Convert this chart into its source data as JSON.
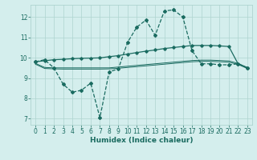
{
  "xlabel": "Humidex (Indice chaleur)",
  "xlim": [
    -0.5,
    23.5
  ],
  "ylim": [
    6.7,
    12.6
  ],
  "yticks": [
    7,
    8,
    9,
    10,
    11,
    12
  ],
  "xticks": [
    0,
    1,
    2,
    3,
    4,
    5,
    6,
    7,
    8,
    9,
    10,
    11,
    12,
    13,
    14,
    15,
    16,
    17,
    18,
    19,
    20,
    21,
    22,
    23
  ],
  "bg_color": "#d4eeed",
  "line_color": "#1a6b60",
  "grid_color": "#aed4d0",
  "line1_x": [
    0,
    1,
    2,
    3,
    4,
    5,
    6,
    7,
    8,
    9,
    10,
    11,
    12,
    13,
    14,
    15,
    16,
    17,
    18,
    19,
    20,
    21,
    22,
    23
  ],
  "line1_y": [
    9.8,
    9.9,
    9.5,
    8.7,
    8.3,
    8.4,
    8.75,
    7.05,
    9.3,
    9.45,
    10.75,
    11.5,
    11.85,
    11.1,
    12.3,
    12.35,
    12.0,
    10.35,
    9.7,
    9.7,
    9.65,
    9.65,
    9.7,
    9.5
  ],
  "line2_x": [
    0,
    1,
    2,
    3,
    4,
    5,
    6,
    7,
    8,
    9,
    10,
    11,
    12,
    13,
    14,
    15,
    16,
    17,
    18,
    19,
    20,
    21,
    22,
    23
  ],
  "line2_y": [
    9.8,
    9.85,
    9.9,
    9.92,
    9.95,
    9.97,
    9.98,
    9.99,
    10.05,
    10.1,
    10.18,
    10.25,
    10.32,
    10.38,
    10.45,
    10.5,
    10.55,
    10.6,
    10.6,
    10.6,
    10.58,
    10.55,
    9.7,
    9.5
  ],
  "line3_x": [
    0,
    1,
    2,
    3,
    4,
    5,
    6,
    7,
    8,
    9,
    10,
    11,
    12,
    13,
    14,
    15,
    16,
    17,
    18,
    19,
    20,
    21,
    22,
    23
  ],
  "line3_y": [
    9.72,
    9.52,
    9.5,
    9.5,
    9.5,
    9.5,
    9.5,
    9.5,
    9.5,
    9.54,
    9.58,
    9.62,
    9.66,
    9.7,
    9.74,
    9.78,
    9.82,
    9.86,
    9.88,
    9.88,
    9.86,
    9.84,
    9.72,
    9.52
  ],
  "line4_x": [
    0,
    1,
    2,
    3,
    4,
    5,
    6,
    7,
    8,
    9,
    10,
    11,
    12,
    13,
    14,
    15,
    16,
    17,
    18,
    19,
    20,
    21,
    22,
    23
  ],
  "line4_y": [
    9.68,
    9.47,
    9.45,
    9.44,
    9.44,
    9.44,
    9.44,
    9.44,
    9.45,
    9.48,
    9.52,
    9.56,
    9.6,
    9.64,
    9.68,
    9.72,
    9.76,
    9.8,
    9.82,
    9.82,
    9.8,
    9.78,
    9.67,
    9.47
  ]
}
